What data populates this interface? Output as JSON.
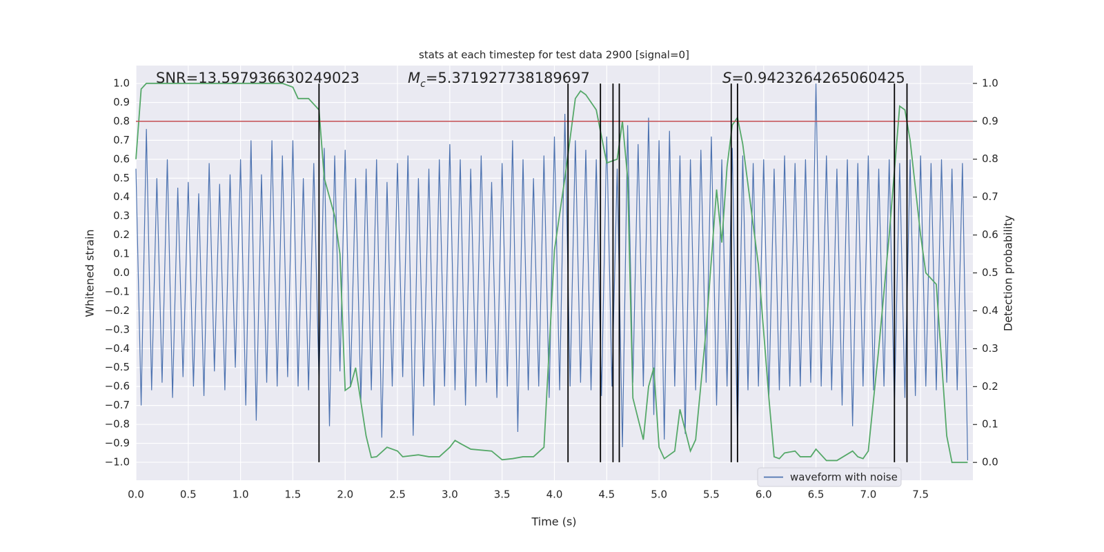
{
  "chart_data": {
    "type": "line",
    "title": "stats at each timestep for test data 2900 [signal=0]",
    "xlabel": "Time (s)",
    "ylabel": "Whitened strain",
    "y2label": "Detection probability",
    "annotations": [
      {
        "parts": [
          {
            "text": "SNR=13.597936630249023"
          }
        ]
      },
      {
        "parts": [
          {
            "text": "M",
            "italic": true
          },
          {
            "text": "c",
            "italic": true,
            "subscript": true
          },
          {
            "text": "=5.371927738189697"
          }
        ]
      },
      {
        "parts": [
          {
            "text": "S",
            "italic": true
          },
          {
            "text": "=0.9423264265060425"
          }
        ]
      }
    ],
    "xlim": [
      0,
      8
    ],
    "ylim": [
      -1.095,
      1.095
    ],
    "y2lim": [
      -0.047,
      1.047
    ],
    "grid": true,
    "legend": "lower right",
    "xticks": [
      {
        "value": 0,
        "label": "0.0"
      },
      {
        "value": 0.5,
        "label": "0.5"
      },
      {
        "value": 1,
        "label": "1.0"
      },
      {
        "value": 1.5,
        "label": "1.5"
      },
      {
        "value": 2,
        "label": "2.0"
      },
      {
        "value": 2.5,
        "label": "2.5"
      },
      {
        "value": 3,
        "label": "3.0"
      },
      {
        "value": 3.5,
        "label": "3.5"
      },
      {
        "value": 4,
        "label": "4.0"
      },
      {
        "value": 4.5,
        "label": "4.5"
      },
      {
        "value": 5,
        "label": "5.0"
      },
      {
        "value": 5.5,
        "label": "5.5"
      },
      {
        "value": 6,
        "label": "6.0"
      },
      {
        "value": 6.5,
        "label": "6.5"
      },
      {
        "value": 7,
        "label": "7.0"
      },
      {
        "value": 7.5,
        "label": "7.5"
      }
    ],
    "yticks": [
      {
        "value": -1,
        "label": "−1.0"
      },
      {
        "value": -0.9,
        "label": "−0.9"
      },
      {
        "value": -0.8,
        "label": "−0.8"
      },
      {
        "value": -0.7,
        "label": "−0.7"
      },
      {
        "value": -0.6,
        "label": "−0.6"
      },
      {
        "value": -0.5,
        "label": "−0.5"
      },
      {
        "value": -0.4,
        "label": "−0.4"
      },
      {
        "value": -0.3,
        "label": "−0.3"
      },
      {
        "value": -0.2,
        "label": "−0.2"
      },
      {
        "value": -0.1,
        "label": "−0.1"
      },
      {
        "value": 0,
        "label": "0.0"
      },
      {
        "value": 0.1,
        "label": "0.1"
      },
      {
        "value": 0.2,
        "label": "0.2"
      },
      {
        "value": 0.3,
        "label": "0.3"
      },
      {
        "value": 0.4,
        "label": "0.4"
      },
      {
        "value": 0.5,
        "label": "0.5"
      },
      {
        "value": 0.6,
        "label": "0.6"
      },
      {
        "value": 0.7,
        "label": "0.7"
      },
      {
        "value": 0.8,
        "label": "0.8"
      },
      {
        "value": 0.9,
        "label": "0.9"
      },
      {
        "value": 1,
        "label": "1.0"
      }
    ],
    "y2ticks": [
      {
        "value": 0,
        "label": "0.0"
      },
      {
        "value": 0.1,
        "label": "0.1"
      },
      {
        "value": 0.2,
        "label": "0.2"
      },
      {
        "value": 0.3,
        "label": "0.3"
      },
      {
        "value": 0.4,
        "label": "0.4"
      },
      {
        "value": 0.5,
        "label": "0.5"
      },
      {
        "value": 0.6,
        "label": "0.6"
      },
      {
        "value": 0.7,
        "label": "0.7"
      },
      {
        "value": 0.8,
        "label": "0.8"
      },
      {
        "value": 0.9,
        "label": "0.9"
      },
      {
        "value": 1,
        "label": "1.0"
      }
    ],
    "threshold": {
      "value": 0.9,
      "axis": "y2",
      "color": "#c44e52"
    },
    "vlines": {
      "x": [
        1.75,
        4.13,
        4.44,
        4.56,
        4.62,
        5.69,
        5.75,
        7.25,
        7.37
      ],
      "color": "#000000"
    },
    "series": [
      {
        "name": "waveform with noise",
        "color": "#4c72b0",
        "x": [
          0,
          0.05,
          0.1,
          0.15,
          0.2,
          0.25,
          0.3,
          0.35,
          0.4,
          0.45,
          0.5,
          0.55,
          0.6,
          0.65,
          0.7,
          0.75,
          0.8,
          0.85,
          0.9,
          0.95,
          1,
          1.05,
          1.1,
          1.15,
          1.2,
          1.25,
          1.3,
          1.35,
          1.4,
          1.45,
          1.5,
          1.55,
          1.6,
          1.65,
          1.7,
          1.75,
          1.8,
          1.85,
          1.9,
          1.95,
          2,
          2.05,
          2.1,
          2.15,
          2.2,
          2.25,
          2.3,
          2.35,
          2.4,
          2.45,
          2.5,
          2.55,
          2.6,
          2.65,
          2.7,
          2.75,
          2.8,
          2.85,
          2.9,
          2.95,
          3,
          3.05,
          3.1,
          3.15,
          3.2,
          3.25,
          3.3,
          3.35,
          3.4,
          3.45,
          3.5,
          3.55,
          3.6,
          3.65,
          3.7,
          3.75,
          3.8,
          3.85,
          3.9,
          3.95,
          4,
          4.05,
          4.1,
          4.15,
          4.2,
          4.25,
          4.3,
          4.35,
          4.4,
          4.45,
          4.5,
          4.55,
          4.6,
          4.65,
          4.7,
          4.75,
          4.8,
          4.85,
          4.9,
          4.95,
          5,
          5.05,
          5.1,
          5.15,
          5.2,
          5.25,
          5.3,
          5.35,
          5.4,
          5.45,
          5.5,
          5.55,
          5.6,
          5.65,
          5.7,
          5.75,
          5.8,
          5.85,
          5.9,
          5.95,
          6,
          6.05,
          6.1,
          6.15,
          6.2,
          6.25,
          6.3,
          6.35,
          6.4,
          6.45,
          6.5,
          6.55,
          6.6,
          6.65,
          6.7,
          6.75,
          6.8,
          6.85,
          6.9,
          6.95,
          7,
          7.05,
          7.1,
          7.15,
          7.2,
          7.25,
          7.3,
          7.35,
          7.4,
          7.45,
          7.5,
          7.55,
          7.6,
          7.65,
          7.7,
          7.75,
          7.8,
          7.85,
          7.9,
          7.95
        ],
        "values": [
          0.55,
          -0.7,
          0.76,
          -0.62,
          0.5,
          -0.58,
          0.6,
          -0.66,
          0.45,
          -0.55,
          0.48,
          -0.6,
          0.42,
          -0.65,
          0.58,
          -0.52,
          0.47,
          -0.62,
          0.52,
          -0.5,
          0.6,
          -0.7,
          0.7,
          -0.78,
          0.52,
          -0.58,
          0.7,
          -0.6,
          0.62,
          -0.55,
          0.7,
          -0.6,
          0.5,
          -0.62,
          0.58,
          -0.58,
          0.66,
          -0.81,
          0.62,
          -0.52,
          0.65,
          -0.6,
          0.5,
          -0.68,
          0.55,
          -0.62,
          0.6,
          -0.87,
          0.48,
          -0.6,
          0.58,
          -0.55,
          0.62,
          -0.86,
          0.5,
          -0.6,
          0.55,
          -0.7,
          0.6,
          -0.6,
          0.68,
          -0.62,
          0.6,
          -0.7,
          0.55,
          -0.6,
          0.62,
          -0.58,
          0.48,
          -0.66,
          0.58,
          -0.6,
          0.7,
          -0.84,
          0.6,
          -0.62,
          0.5,
          -0.6,
          0.62,
          -0.66,
          0.72,
          -0.62,
          0.84,
          -0.6,
          0.7,
          -0.58,
          0.65,
          -0.62,
          0.6,
          -0.65,
          0.72,
          -0.6,
          0.55,
          -0.92,
          0.78,
          -0.58,
          0.68,
          -0.6,
          0.82,
          -0.75,
          0.7,
          -0.88,
          0.75,
          -0.6,
          0.62,
          -0.85,
          0.6,
          -0.62,
          0.65,
          -0.58,
          0.72,
          -0.7,
          0.6,
          -0.6,
          0.66,
          -0.88,
          0.62,
          -0.62,
          0.58,
          -0.6,
          0.6,
          -0.66,
          0.55,
          -0.62,
          0.62,
          -0.6,
          0.58,
          -0.6,
          0.6,
          -0.58,
          1.0,
          -0.6,
          0.62,
          -0.62,
          0.55,
          -0.7,
          0.6,
          -0.81,
          0.58,
          -0.6,
          0.62,
          -0.62,
          0.55,
          -0.6,
          0.6,
          -0.7,
          0.58,
          -0.66,
          0.6,
          -0.65,
          0.62,
          -0.6,
          0.58,
          -0.62,
          0.6,
          -0.58,
          0.55,
          -0.62,
          0.58,
          -0.99
        ]
      },
      {
        "color": "#55a868",
        "axis": "y2",
        "x": [
          0,
          0.05,
          0.1,
          0.2,
          0.3,
          0.4,
          0.5,
          0.6,
          0.7,
          0.8,
          0.9,
          1.0,
          1.1,
          1.2,
          1.3,
          1.4,
          1.5,
          1.55,
          1.65,
          1.75,
          1.8,
          1.9,
          1.95,
          2.0,
          2.05,
          2.1,
          2.2,
          2.25,
          2.3,
          2.4,
          2.5,
          2.55,
          2.7,
          2.8,
          2.9,
          3.0,
          3.05,
          3.1,
          3.2,
          3.4,
          3.5,
          3.6,
          3.7,
          3.8,
          3.9,
          4.0,
          4.1,
          4.2,
          4.25,
          4.3,
          4.35,
          4.4,
          4.5,
          4.6,
          4.65,
          4.7,
          4.75,
          4.85,
          4.9,
          4.95,
          5.0,
          5.05,
          5.15,
          5.2,
          5.3,
          5.35,
          5.45,
          5.55,
          5.6,
          5.65,
          5.7,
          5.75,
          5.8,
          5.95,
          6.05,
          6.1,
          6.15,
          6.2,
          6.3,
          6.35,
          6.45,
          6.5,
          6.6,
          6.7,
          6.85,
          6.9,
          6.95,
          7.0,
          7.1,
          7.2,
          7.3,
          7.35,
          7.4,
          7.5,
          7.55,
          7.65,
          7.75,
          7.8,
          7.9,
          7.95
        ],
        "values": [
          0.8,
          0.985,
          1.0,
          1.0,
          1.0,
          1.0,
          1.0,
          1.0,
          1.0,
          1.0,
          1.0,
          1.0,
          1.0,
          1.0,
          1.0,
          1.0,
          0.99,
          0.96,
          0.96,
          0.93,
          0.75,
          0.65,
          0.55,
          0.19,
          0.2,
          0.25,
          0.07,
          0.013,
          0.015,
          0.04,
          0.03,
          0.015,
          0.02,
          0.015,
          0.015,
          0.04,
          0.058,
          0.05,
          0.035,
          0.03,
          0.007,
          0.01,
          0.015,
          0.015,
          0.04,
          0.56,
          0.75,
          0.96,
          0.98,
          0.97,
          0.95,
          0.93,
          0.79,
          0.8,
          0.9,
          0.75,
          0.17,
          0.06,
          0.2,
          0.25,
          0.04,
          0.01,
          0.03,
          0.14,
          0.03,
          0.06,
          0.35,
          0.72,
          0.58,
          0.78,
          0.89,
          0.91,
          0.84,
          0.52,
          0.17,
          0.015,
          0.01,
          0.025,
          0.03,
          0.015,
          0.015,
          0.035,
          0.005,
          0.005,
          0.03,
          0.015,
          0.01,
          0.03,
          0.3,
          0.6,
          0.94,
          0.93,
          0.85,
          0.6,
          0.5,
          0.47,
          0.07,
          0.0,
          0.0,
          0.0
        ]
      }
    ]
  }
}
